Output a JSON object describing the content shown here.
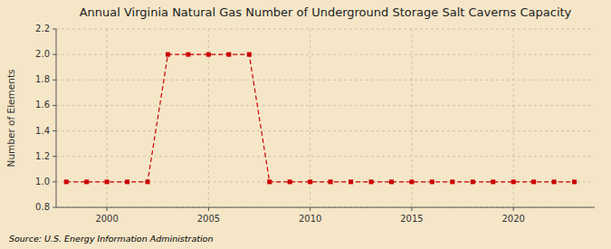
{
  "chart_data": {
    "type": "line",
    "title": "Annual Virginia Natural Gas Number of Underground Storage Salt Caverns Capacity",
    "y_label": "Number of Elements",
    "annotations": [
      "Source: U.S. Energy Information Administration"
    ],
    "x": [
      1998,
      1999,
      2000,
      2001,
      2002,
      2003,
      2004,
      2005,
      2006,
      2007,
      2008,
      2009,
      2010,
      2011,
      2012,
      2013,
      2014,
      2015,
      2016,
      2017,
      2018,
      2019,
      2020,
      2021,
      2022,
      2023
    ],
    "values": [
      1,
      1,
      1,
      1,
      1,
      2,
      2,
      2,
      2,
      2,
      1,
      1,
      1,
      1,
      1,
      1,
      1,
      1,
      1,
      1,
      1,
      1,
      1,
      1,
      1,
      1
    ],
    "color": "#cc0000",
    "marker": "square",
    "line_style": "dashed",
    "xlim": [
      1997.5,
      2024
    ],
    "xticks": [
      2000,
      2005,
      2010,
      2015,
      2020
    ],
    "ylim": [
      0.8,
      2.2
    ],
    "yticks": [
      0.8,
      {
        "value": 1.0,
        "label": "1.0"
      },
      1.2,
      1.4,
      1.6,
      1.8,
      {
        "value": 2.0,
        "label": "2.0"
      },
      2.2
    ],
    "grid": true
  }
}
